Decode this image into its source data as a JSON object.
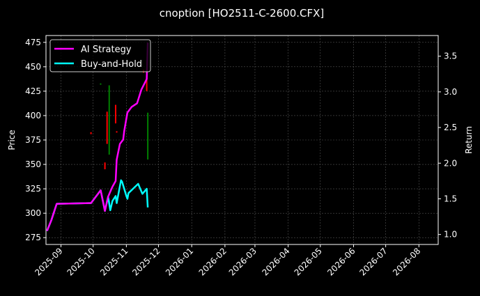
{
  "chart_data": {
    "type": "line",
    "title": "cnoption [HO2511-C-2600.CFX]",
    "xlabel": "",
    "ylabel": "Price",
    "y2label": "Return",
    "xlim": [
      "2025-08-18",
      "2026-08-19"
    ],
    "ylim": [
      268,
      482
    ],
    "y2lim": [
      0.86,
      3.79
    ],
    "grid": true,
    "legend_position": "top-left",
    "x_ticks": [
      "2025-09",
      "2025-10",
      "2025-11",
      "2025-12",
      "2026-01",
      "2026-02",
      "2026-03",
      "2026-04",
      "2026-05",
      "2026-06",
      "2026-07",
      "2026-08"
    ],
    "y_ticks": [
      275,
      300,
      325,
      350,
      375,
      400,
      425,
      450,
      475
    ],
    "y2_ticks": [
      "1.0",
      "1.5",
      "2.0",
      "2.5",
      "3.0",
      "3.5"
    ],
    "series": [
      {
        "name": "AI Strategy",
        "color": "#ff00ff",
        "axis": "right",
        "x": [
          "2025-08-19",
          "2025-08-23",
          "2025-08-28",
          "2025-09-29",
          "2025-10-08",
          "2025-10-12",
          "2025-10-15",
          "2025-10-17",
          "2025-10-19",
          "2025-10-22",
          "2025-10-23",
          "2025-10-26",
          "2025-10-29",
          "2025-10-30",
          "2025-11-02",
          "2025-11-06",
          "2025-11-11",
          "2025-11-15",
          "2025-11-20",
          "2025-11-21"
        ],
        "values": [
          1.05,
          1.2,
          1.43,
          1.44,
          1.62,
          1.33,
          1.53,
          1.6,
          1.67,
          1.75,
          2.05,
          2.27,
          2.33,
          2.45,
          2.71,
          2.79,
          2.84,
          3.03,
          3.18,
          3.69
        ]
      },
      {
        "name": "Buy-and-Hold",
        "color": "#00ffff",
        "axis": "right",
        "x": [
          "2025-08-19",
          "2025-08-23",
          "2025-08-28",
          "2025-09-29",
          "2025-10-08",
          "2025-10-12",
          "2025-10-15",
          "2025-10-17",
          "2025-10-19",
          "2025-10-22",
          "2025-10-23",
          "2025-10-27",
          "2025-10-28",
          "2025-11-01",
          "2025-11-02",
          "2025-11-03",
          "2025-11-12",
          "2025-11-16",
          "2025-11-20",
          "2025-11-21"
        ],
        "values": [
          1.05,
          1.2,
          1.43,
          1.44,
          1.62,
          1.33,
          1.53,
          1.34,
          1.47,
          1.54,
          1.44,
          1.76,
          1.74,
          1.54,
          1.5,
          1.58,
          1.71,
          1.57,
          1.64,
          1.38
        ]
      }
    ],
    "candles": [
      {
        "date": "2025-09-29",
        "open": 383,
        "close": 381
      },
      {
        "date": "2025-10-08",
        "open": 432,
        "close": 433
      },
      {
        "date": "2025-10-12",
        "open": 352,
        "close": 345
      },
      {
        "date": "2025-10-14",
        "open": 404,
        "close": 371
      },
      {
        "date": "2025-10-16",
        "open": 360,
        "close": 431
      },
      {
        "date": "2025-10-22",
        "open": 411,
        "close": 392
      },
      {
        "date": "2025-10-23",
        "open": 384,
        "close": 383
      },
      {
        "date": "2025-11-17",
        "open": 447,
        "close": 444
      },
      {
        "date": "2025-11-20",
        "open": 440,
        "close": 425
      },
      {
        "date": "2025-11-21",
        "open": 355,
        "close": 403
      }
    ],
    "colors": {
      "up": "#008000",
      "down": "#ff0000",
      "grid": "#555555"
    }
  }
}
